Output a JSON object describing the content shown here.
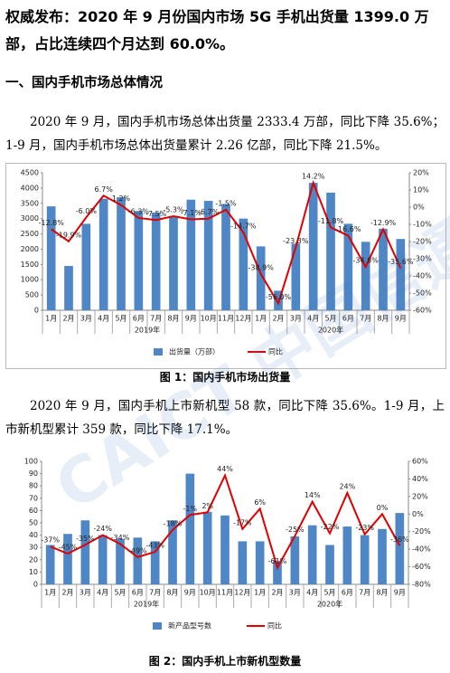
{
  "headline": "权威发布：2020 年 9 月份国内市场 5G 手机出货量 1399.0 万部，占比连续四个月达到 60.0%。",
  "section": "一、国内手机市场总体情况",
  "paragraphs": [
    "2020 年 9 月，国内手机市场总体出货量 2333.4 万部，同比下降 35.6%；1-9 月，国内手机市场总体出货量累计 2.26 亿部，同比下降 21.5%。",
    "2020 年 9 月，国内手机上市新机型 58 款，同比下降 35.6%。1-9 月，上市新机型累计 359 款，同比下降 17.1%。"
  ],
  "watermark": "CAICT 中国信通院",
  "chart_data": [
    {
      "type": "combo",
      "caption": "图 1：国内手机市场出货量",
      "categories": [
        "1月",
        "2月",
        "3月",
        "4月",
        "5月",
        "6月",
        "7月",
        "8月",
        "9月",
        "10月",
        "11月",
        "12月",
        "1月",
        "2月",
        "3月",
        "4月",
        "5月",
        "6月",
        "7月",
        "8月",
        "9月"
      ],
      "year_labels": [
        "2019年",
        "2020年"
      ],
      "grid": false,
      "ylim": [
        0,
        4500
      ],
      "yticks": [
        0,
        500,
        1000,
        1500,
        2000,
        2500,
        3000,
        3500,
        4000,
        4500
      ],
      "y2lim": [
        -60,
        20
      ],
      "y2ticks": [
        {
          "value": 20,
          "label": "20%"
        },
        {
          "value": 10,
          "label": "10%"
        },
        {
          "value": 0,
          "label": "0%"
        },
        {
          "value": -10,
          "label": "-10%"
        },
        {
          "value": -20,
          "label": "-20%"
        },
        {
          "value": -30,
          "label": "-30%"
        },
        {
          "value": -40,
          "label": "-40%"
        },
        {
          "value": -50,
          "label": "-50%"
        },
        {
          "value": -60,
          "label": "-60%"
        }
      ],
      "series": [
        {
          "name": "出货量（万部）",
          "type": "bar",
          "color": "#4f86c6",
          "values": [
            3400,
            1450,
            2830,
            3650,
            3700,
            3250,
            3200,
            3050,
            3620,
            3580,
            3480,
            3000,
            2090,
            640,
            2180,
            4170,
            3850,
            2830,
            2240,
            2670,
            2333.4
          ]
        },
        {
          "name": "同比",
          "type": "line",
          "axis": "y2",
          "color": "#e00000",
          "values": [
            -12.8,
            -19.9,
            -6.0,
            6.7,
            1.2,
            -6.3,
            -7.5,
            -5.3,
            -7.1,
            -6.7,
            -1.5,
            -14.7,
            -38.9,
            -56.0,
            -23.3,
            14.2,
            -11.8,
            -16.6,
            -34.8,
            -12.9,
            -35.6
          ],
          "value_labels": [
            "-12.8%",
            "-19.9%",
            "-6.0%",
            "6.7%",
            "1.2%",
            "-6.3%",
            "-7.5%",
            "-5.3%",
            "-7.1%",
            "-6.7%",
            "-1.5%",
            "-14.7%",
            "-38.9%",
            "-56.0%",
            "-23.3%",
            "14.2%",
            "-11.8%",
            "-16.6%",
            "-34.8%",
            "-12.9%",
            "-35.6%"
          ]
        }
      ]
    },
    {
      "type": "combo",
      "caption": "图 2：国内手机上市新机型数量",
      "categories": [
        "1月",
        "2月",
        "3月",
        "4月",
        "5月",
        "6月",
        "7月",
        "8月",
        "9月",
        "10月",
        "11月",
        "12月",
        "1月",
        "2月",
        "3月",
        "4月",
        "5月",
        "6月",
        "7月",
        "8月",
        "9月"
      ],
      "year_labels": [
        "2019年",
        "2020年"
      ],
      "grid": false,
      "ylim": [
        0,
        100
      ],
      "yticks": [
        0,
        10,
        20,
        30,
        40,
        50,
        60,
        70,
        80,
        90,
        100
      ],
      "y2lim": [
        -80,
        60
      ],
      "y2ticks": [
        {
          "value": 60,
          "label": "60%"
        },
        {
          "value": 40,
          "label": "40%"
        },
        {
          "value": 20,
          "label": "20%"
        },
        {
          "value": 0,
          "label": "0%"
        },
        {
          "value": -20,
          "label": "-20%"
        },
        {
          "value": -40,
          "label": "-40%"
        },
        {
          "value": -60,
          "label": "-60%"
        },
        {
          "value": -80,
          "label": "-80%"
        }
      ],
      "series": [
        {
          "name": "新产品型号数",
          "type": "bar",
          "color": "#4f86c6",
          "values": [
            32,
            41,
            52,
            40,
            37,
            38,
            35,
            52,
            90,
            59,
            56,
            35,
            35,
            19,
            39,
            48,
            32,
            47,
            40,
            45,
            58
          ]
        },
        {
          "name": "同比",
          "type": "line",
          "axis": "y2",
          "color": "#e00000",
          "values": [
            -37,
            -45,
            -35,
            -24,
            -34,
            -49,
            -43,
            -18,
            -1,
            2,
            44,
            -17,
            6,
            -61,
            -25,
            14,
            -22,
            24,
            -23,
            0,
            -36
          ],
          "value_labels": [
            "-37%",
            "-45%",
            "-35%",
            "-24%",
            "-34%",
            "-49%",
            "-43%",
            "-18%",
            "-1%",
            "2%",
            "44%",
            "-17%",
            "6%",
            "-61%",
            "-25%",
            "14%",
            "-22%",
            "24%",
            "-23%",
            "0%",
            "-36%"
          ]
        }
      ]
    }
  ]
}
